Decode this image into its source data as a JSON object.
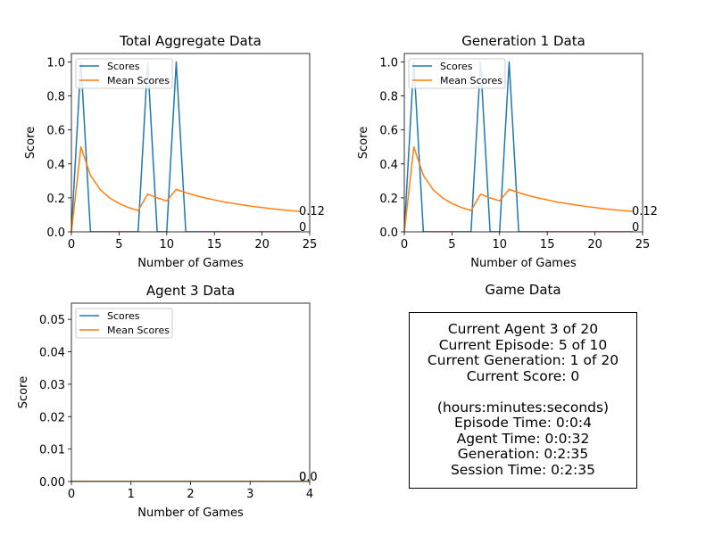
{
  "colors": {
    "scores": "#1f77b4",
    "mean": "#ff7f0e",
    "axes": "#000000",
    "background": "#ffffff"
  },
  "chart_data": [
    {
      "type": "line",
      "title": "Total Aggregate Data",
      "xlabel": "Number of Games",
      "ylabel": "Score",
      "xlim": [
        0,
        25
      ],
      "ylim": [
        0,
        1.05
      ],
      "xticks": [
        0,
        5,
        10,
        15,
        20,
        25
      ],
      "yticks": [
        0.0,
        0.2,
        0.4,
        0.6,
        0.8,
        1.0
      ],
      "xtick_labels": [
        "0",
        "5",
        "10",
        "15",
        "20",
        "25"
      ],
      "ytick_labels": [
        "0.0",
        "0.2",
        "0.4",
        "0.6",
        "0.8",
        "1.0"
      ],
      "legend": "upper-left",
      "x": [
        0,
        1,
        2,
        3,
        4,
        5,
        6,
        7,
        8,
        9,
        10,
        11,
        12,
        13,
        14,
        15,
        16,
        17,
        18,
        19,
        20,
        21,
        22,
        23,
        24
      ],
      "series": [
        {
          "name": "Scores",
          "color": "#1f77b4",
          "values": [
            0,
            1,
            0,
            0,
            0,
            0,
            0,
            0,
            1,
            0,
            0,
            1,
            0,
            0,
            0,
            0,
            0,
            0,
            0,
            0,
            0,
            0,
            0,
            0,
            0
          ]
        },
        {
          "name": "Mean Scores",
          "color": "#ff7f0e",
          "values": [
            0,
            0.5,
            0.333,
            0.25,
            0.2,
            0.167,
            0.143,
            0.125,
            0.222,
            0.2,
            0.182,
            0.25,
            0.231,
            0.214,
            0.2,
            0.188,
            0.176,
            0.167,
            0.158,
            0.15,
            0.143,
            0.136,
            0.13,
            0.125,
            0.12
          ]
        }
      ],
      "end_labels": [
        "0.12",
        "0"
      ]
    },
    {
      "type": "line",
      "title": "Generation 1 Data",
      "xlabel": "Number of Games",
      "ylabel": "Score",
      "xlim": [
        0,
        25
      ],
      "ylim": [
        0,
        1.05
      ],
      "xticks": [
        0,
        5,
        10,
        15,
        20,
        25
      ],
      "yticks": [
        0.0,
        0.2,
        0.4,
        0.6,
        0.8,
        1.0
      ],
      "xtick_labels": [
        "0",
        "5",
        "10",
        "15",
        "20",
        "25"
      ],
      "ytick_labels": [
        "0.0",
        "0.2",
        "0.4",
        "0.6",
        "0.8",
        "1.0"
      ],
      "legend": "upper-left",
      "x": [
        0,
        1,
        2,
        3,
        4,
        5,
        6,
        7,
        8,
        9,
        10,
        11,
        12,
        13,
        14,
        15,
        16,
        17,
        18,
        19,
        20,
        21,
        22,
        23,
        24
      ],
      "series": [
        {
          "name": "Scores",
          "color": "#1f77b4",
          "values": [
            0,
            1,
            0,
            0,
            0,
            0,
            0,
            0,
            1,
            0,
            0,
            1,
            0,
            0,
            0,
            0,
            0,
            0,
            0,
            0,
            0,
            0,
            0,
            0,
            0
          ]
        },
        {
          "name": "Mean Scores",
          "color": "#ff7f0e",
          "values": [
            0,
            0.5,
            0.333,
            0.25,
            0.2,
            0.167,
            0.143,
            0.125,
            0.222,
            0.2,
            0.182,
            0.25,
            0.231,
            0.214,
            0.2,
            0.188,
            0.176,
            0.167,
            0.158,
            0.15,
            0.143,
            0.136,
            0.13,
            0.125,
            0.12
          ]
        }
      ],
      "end_labels": [
        "0.12",
        "0"
      ]
    },
    {
      "type": "line",
      "title": "Agent 3 Data",
      "xlabel": "Number of Games",
      "ylabel": "Score",
      "xlim": [
        0,
        4
      ],
      "ylim": [
        0,
        0.055
      ],
      "xticks": [
        0,
        1,
        2,
        3,
        4
      ],
      "yticks": [
        0.0,
        0.01,
        0.02,
        0.03,
        0.04,
        0.05
      ],
      "xtick_labels": [
        "0",
        "1",
        "2",
        "3",
        "4"
      ],
      "ytick_labels": [
        "0.00",
        "0.01",
        "0.02",
        "0.03",
        "0.04",
        "0.05"
      ],
      "legend": "upper-left",
      "x": [
        0,
        1,
        2,
        3,
        4
      ],
      "series": [
        {
          "name": "Scores",
          "color": "#1f77b4",
          "values": [
            0,
            0,
            0,
            0,
            0
          ]
        },
        {
          "name": "Mean Scores",
          "color": "#ff7f0e",
          "values": [
            0,
            0,
            0,
            0,
            0
          ]
        }
      ],
      "end_labels": [
        "0",
        "0.0"
      ]
    }
  ],
  "game_data": {
    "title": "Game Data",
    "current_agent": "Current Agent 3 of 20",
    "current_episode": "Current Episode: 5 of 10",
    "current_generation": "Current Generation: 1 of 20",
    "current_score": "Current Score: 0",
    "time_format": "(hours:minutes:seconds)",
    "episode_time": "Episode Time: 0:0:4",
    "agent_time": "Agent Time: 0:0:32",
    "generation_time": "Generation: 0:2:35",
    "session_time": "Session Time: 0:2:35"
  }
}
